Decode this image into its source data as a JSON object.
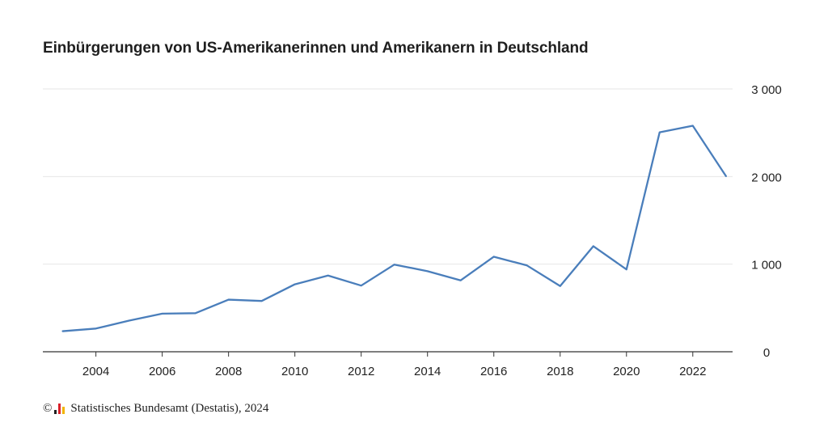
{
  "chart_data": {
    "type": "line",
    "title": "Einbürgerungen von US-Amerikanerinnen und Amerikanern in Deutschland",
    "xlabel": "",
    "ylabel": "",
    "x": [
      2003,
      2004,
      2005,
      2006,
      2007,
      2008,
      2009,
      2010,
      2011,
      2012,
      2013,
      2014,
      2015,
      2016,
      2017,
      2018,
      2019,
      2020,
      2021,
      2022,
      2023
    ],
    "series": [
      {
        "values": [
          235,
          265,
          355,
          435,
          440,
          595,
          580,
          770,
          870,
          755,
          995,
          920,
          815,
          1085,
          985,
          750,
          1205,
          940,
          2505,
          2580,
          2005
        ],
        "color": "#4a7ebb"
      }
    ],
    "xlim": [
      2002.4,
      2023.2
    ],
    "ylim": [
      0,
      3000
    ],
    "x_ticks": [
      "2004",
      "2006",
      "2008",
      "2010",
      "2012",
      "2014",
      "2016",
      "2018",
      "2020",
      "2022"
    ],
    "y_ticks": [
      "0",
      "1 000",
      "2 000",
      "3 000"
    ],
    "y_axis_side": "right",
    "grid": true,
    "legend": "none"
  },
  "footer": {
    "copyright_symbol": "©",
    "logo_colors": [
      "#1f1f1f",
      "#d9202a",
      "#f2b400"
    ],
    "source_text": "Statistisches Bundesamt (Destatis), 2024"
  }
}
